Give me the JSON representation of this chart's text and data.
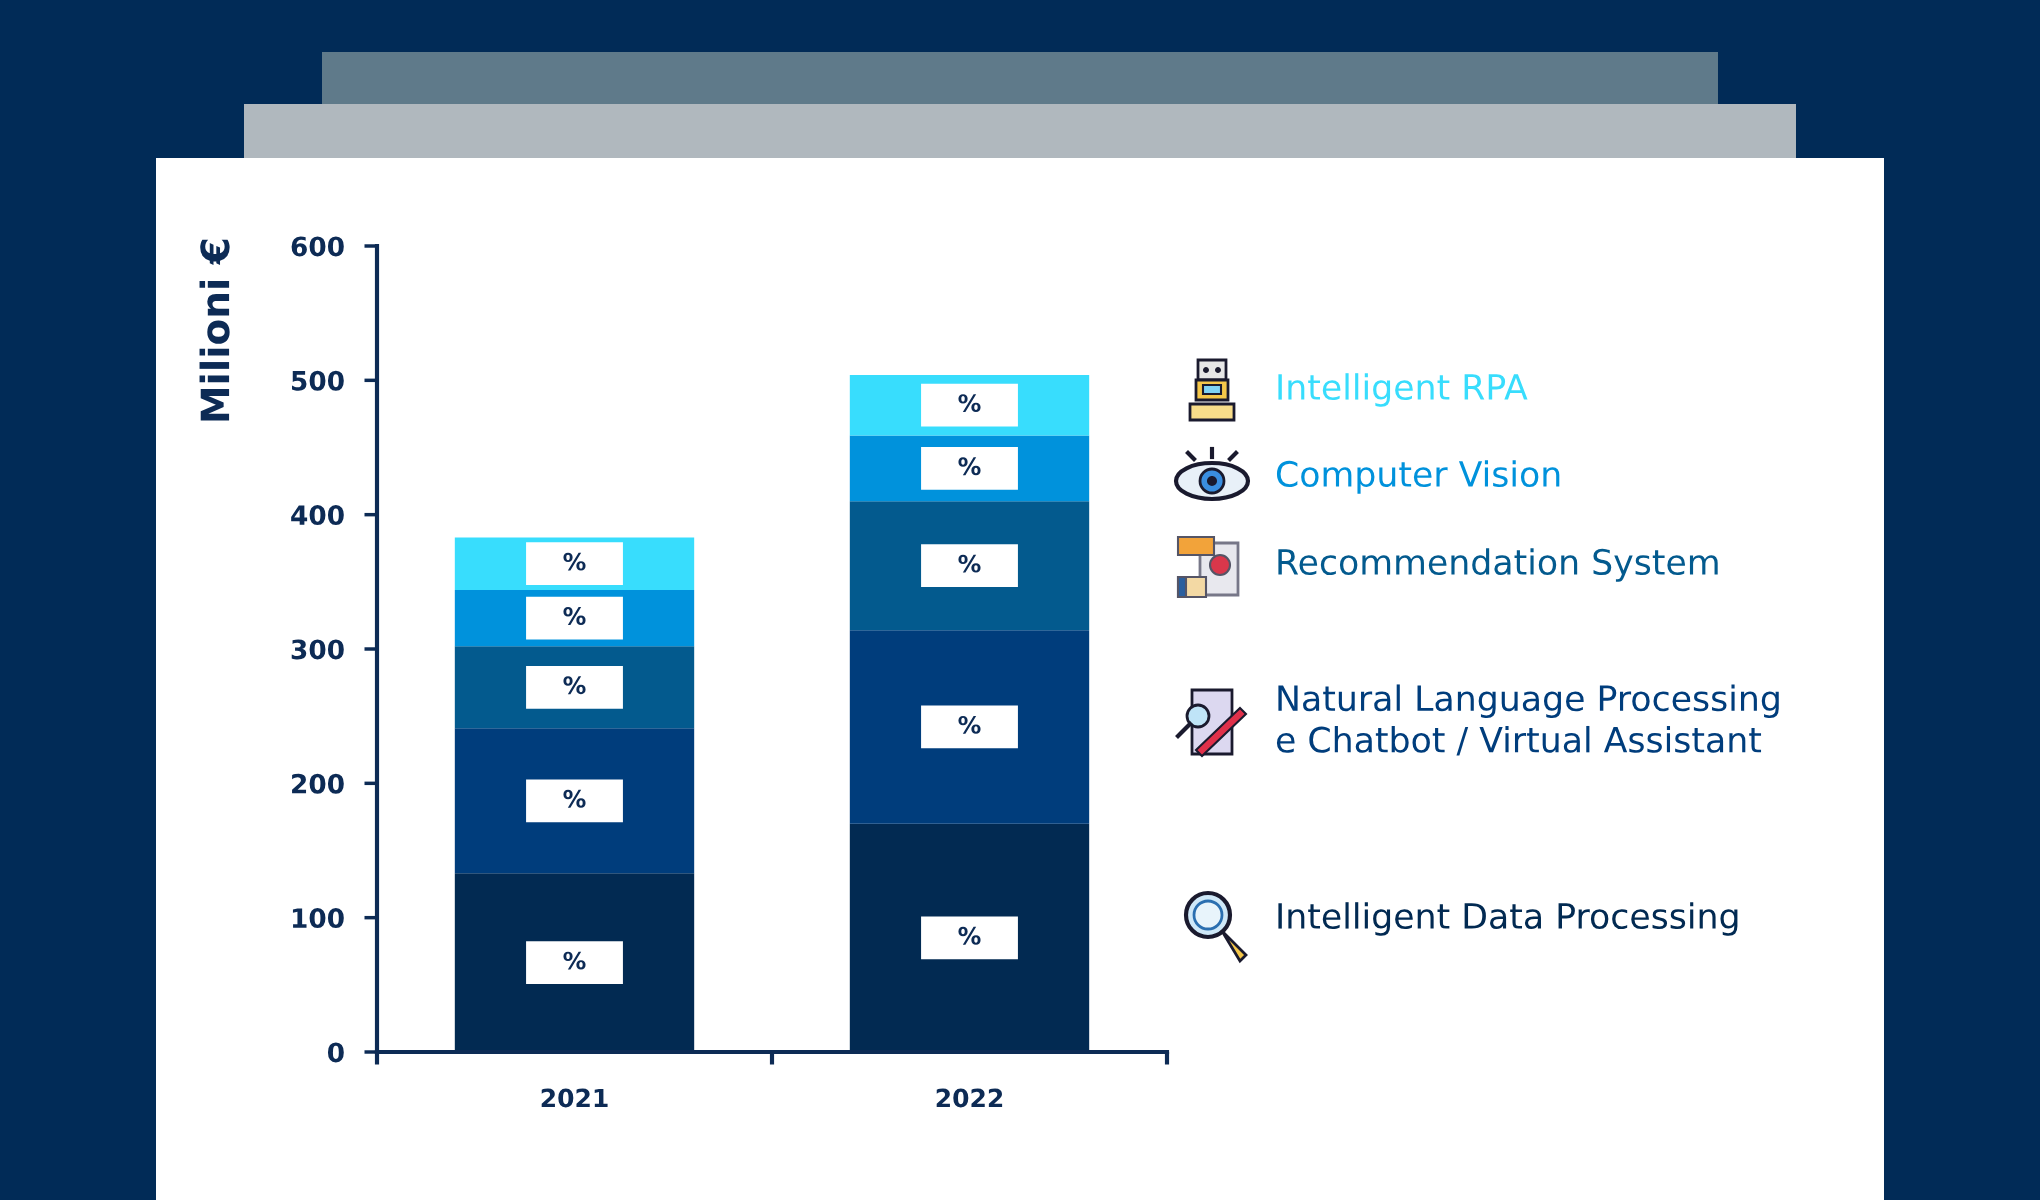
{
  "chart_data": {
    "type": "bar",
    "stacked": true,
    "ylabel": "Milioni €",
    "categories": [
      "2021",
      "2022"
    ],
    "ylim": [
      0,
      600
    ],
    "yticks": [
      0,
      100,
      200,
      300,
      400,
      500,
      600
    ],
    "grid": false,
    "legend": "right",
    "series": [
      {
        "name": "Intelligent Data Processing",
        "color": "#022a52",
        "values": [
          133,
          170
        ],
        "value_labels": [
          "%",
          "%"
        ]
      },
      {
        "name": "Natural Language Processing\ne Chatbot / Virtual Assistant",
        "color": "#003d7c",
        "values": [
          108,
          144
        ],
        "value_labels": [
          "%",
          "%"
        ]
      },
      {
        "name": "Recommendation System",
        "color": "#035a8e",
        "values": [
          61,
          96
        ],
        "value_labels": [
          "%",
          "%"
        ]
      },
      {
        "name": "Computer Vision",
        "color": "#0092dc",
        "values": [
          42,
          49
        ],
        "value_labels": [
          "%",
          "%"
        ]
      },
      {
        "name": "Intelligent RPA",
        "color": "#38ddfd",
        "values": [
          39,
          45
        ],
        "value_labels": [
          "%",
          "%"
        ]
      }
    ]
  }
}
